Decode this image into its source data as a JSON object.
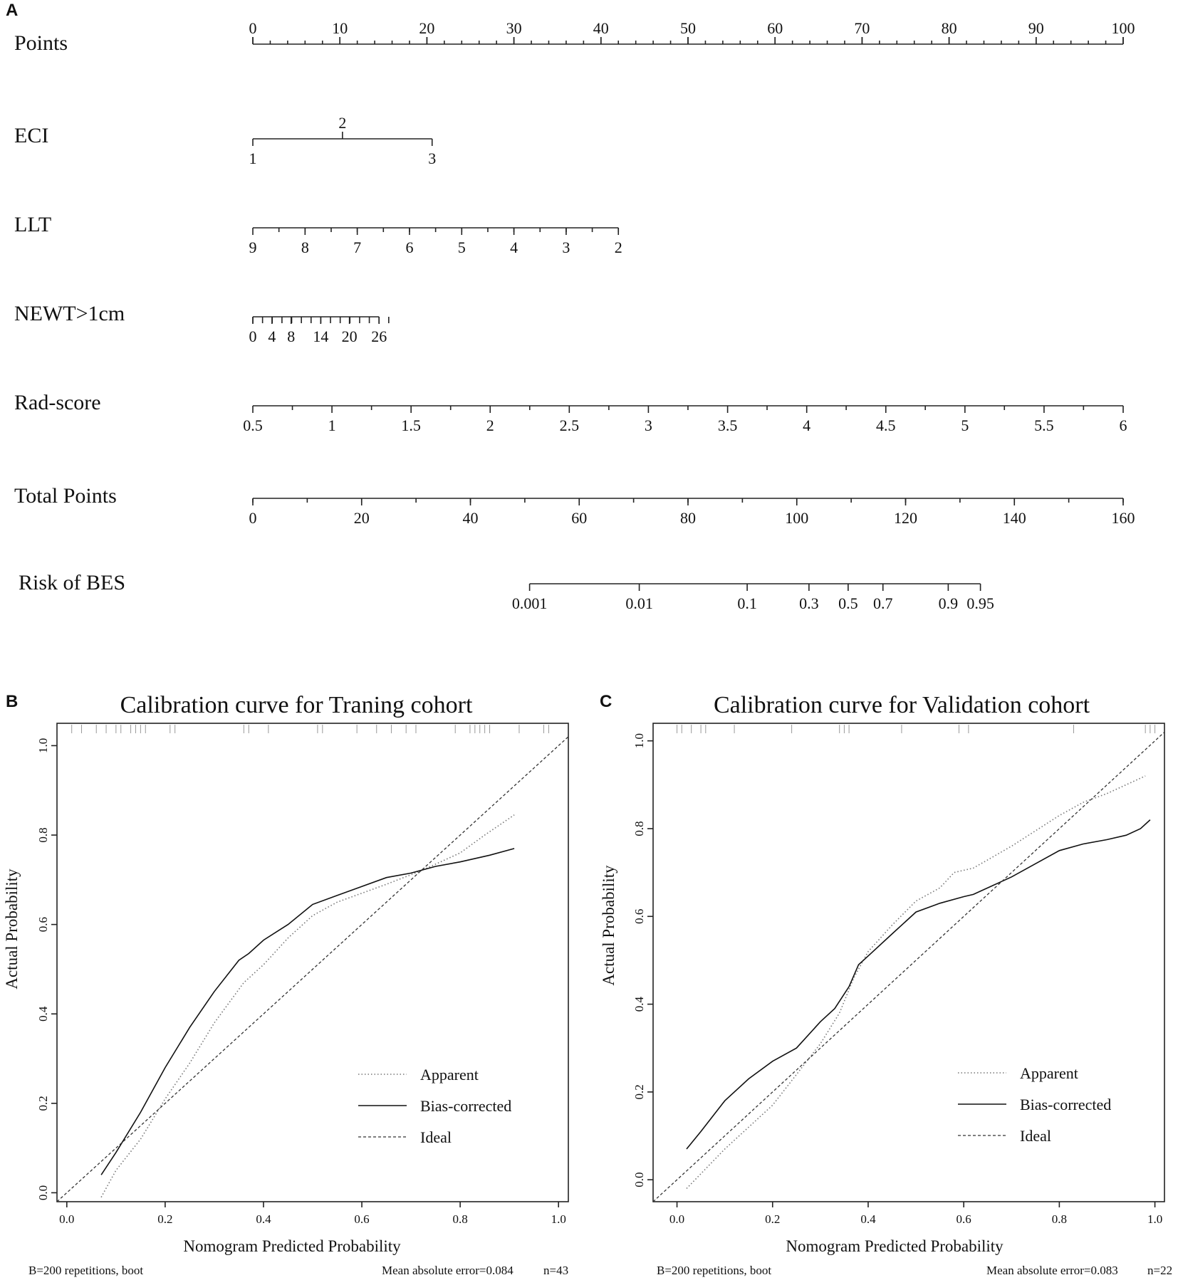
{
  "panel_labels": {
    "a": "A",
    "b": "B",
    "c": "C"
  },
  "nomogram": {
    "rows": [
      {
        "label": "Points",
        "ticks": [
          {
            "v": 0,
            "label": "0"
          },
          {
            "v": 10,
            "label": "10"
          },
          {
            "v": 20,
            "label": "20"
          },
          {
            "v": 30,
            "label": "30"
          },
          {
            "v": 40,
            "label": "40"
          },
          {
            "v": 50,
            "label": "50"
          },
          {
            "v": 60,
            "label": "60"
          },
          {
            "v": 70,
            "label": "70"
          },
          {
            "v": 80,
            "label": "80"
          },
          {
            "v": 90,
            "label": "90"
          },
          {
            "v": 100,
            "label": "100"
          }
        ]
      },
      {
        "label": "ECI",
        "ticks": [
          {
            "v": 0,
            "label": "1"
          },
          {
            "v": 10.3,
            "label": "2"
          },
          {
            "v": 20.6,
            "label": "3"
          }
        ]
      },
      {
        "label": "LLT",
        "ticks": [
          {
            "v": 0,
            "label": "9"
          },
          {
            "v": 6,
            "label": "8"
          },
          {
            "v": 12,
            "label": "7"
          },
          {
            "v": 18,
            "label": "6"
          },
          {
            "v": 24,
            "label": "5"
          },
          {
            "v": 30,
            "label": "4"
          },
          {
            "v": 36,
            "label": "3"
          },
          {
            "v": 42,
            "label": "2"
          }
        ]
      },
      {
        "label": "NEWT>1cm",
        "ticks": [
          {
            "v": 0,
            "label": "0"
          },
          {
            "v": 2.2,
            "label": "4"
          },
          {
            "v": 4.4,
            "label": "8"
          },
          {
            "v": 7.8,
            "label": "14"
          },
          {
            "v": 11.1,
            "label": "20"
          },
          {
            "v": 14.5,
            "label": "26"
          }
        ]
      },
      {
        "label": "Rad-score",
        "ticks": [
          {
            "v": 0,
            "label": "0.5"
          },
          {
            "v": 9.09,
            "label": "1"
          },
          {
            "v": 18.18,
            "label": "1.5"
          },
          {
            "v": 27.27,
            "label": "2"
          },
          {
            "v": 36.36,
            "label": "2.5"
          },
          {
            "v": 45.45,
            "label": "3"
          },
          {
            "v": 54.55,
            "label": "3.5"
          },
          {
            "v": 63.64,
            "label": "4"
          },
          {
            "v": 72.73,
            "label": "4.5"
          },
          {
            "v": 81.82,
            "label": "5"
          },
          {
            "v": 90.91,
            "label": "5.5"
          },
          {
            "v": 100,
            "label": "6"
          }
        ]
      },
      {
        "label": "Total Points",
        "ticks": [
          {
            "v": 0,
            "label": "0"
          },
          {
            "v": 12.5,
            "label": "20"
          },
          {
            "v": 25,
            "label": "40"
          },
          {
            "v": 37.5,
            "label": "60"
          },
          {
            "v": 50,
            "label": "80"
          },
          {
            "v": 62.5,
            "label": "100"
          },
          {
            "v": 75,
            "label": "120"
          },
          {
            "v": 87.5,
            "label": "140"
          },
          {
            "v": 100,
            "label": "160"
          }
        ]
      },
      {
        "label": "Risk of BES",
        "ticks": [
          {
            "v": 31.8,
            "label": "0.001"
          },
          {
            "v": 44.4,
            "label": "0.01"
          },
          {
            "v": 56.8,
            "label": "0.1"
          },
          {
            "v": 63.9,
            "label": "0.3"
          },
          {
            "v": 68.4,
            "label": "0.5"
          },
          {
            "v": 72.4,
            "label": "0.7"
          },
          {
            "v": 79.9,
            "label": "0.9"
          },
          {
            "v": 83.6,
            "label": "0.95"
          }
        ]
      }
    ]
  },
  "chart_data": [
    {
      "type": "line",
      "panel": "B",
      "title": "Calibration curve for Traning cohort",
      "xlabel": "Nomogram Predicted Probability",
      "ylabel": "Actual Probability",
      "xlim": [
        -0.02,
        1.02
      ],
      "ylim": [
        -0.02,
        1.05
      ],
      "xticks": [
        "0.0",
        "0.2",
        "0.4",
        "0.6",
        "0.8",
        "1.0"
      ],
      "yticks": [
        "0.0",
        "0.2",
        "0.4",
        "0.6",
        "0.8",
        "1.0"
      ],
      "series": [
        {
          "name": "Apparent",
          "style": "dotted",
          "points": [
            [
              0.07,
              -0.01
            ],
            [
              0.1,
              0.05
            ],
            [
              0.15,
              0.12
            ],
            [
              0.2,
              0.21
            ],
            [
              0.25,
              0.29
            ],
            [
              0.3,
              0.38
            ],
            [
              0.36,
              0.47
            ],
            [
              0.4,
              0.51
            ],
            [
              0.45,
              0.57
            ],
            [
              0.5,
              0.62
            ],
            [
              0.55,
              0.65
            ],
            [
              0.6,
              0.67
            ],
            [
              0.65,
              0.69
            ],
            [
              0.72,
              0.72
            ],
            [
              0.8,
              0.76
            ],
            [
              0.85,
              0.8
            ],
            [
              0.91,
              0.845
            ]
          ]
        },
        {
          "name": "Bias-corrected",
          "style": "solid",
          "points": [
            [
              0.07,
              0.04
            ],
            [
              0.1,
              0.09
            ],
            [
              0.15,
              0.18
            ],
            [
              0.2,
              0.28
            ],
            [
              0.25,
              0.37
            ],
            [
              0.3,
              0.45
            ],
            [
              0.35,
              0.52
            ],
            [
              0.37,
              0.535
            ],
            [
              0.4,
              0.565
            ],
            [
              0.45,
              0.6
            ],
            [
              0.5,
              0.645
            ],
            [
              0.55,
              0.665
            ],
            [
              0.6,
              0.685
            ],
            [
              0.65,
              0.705
            ],
            [
              0.7,
              0.715
            ],
            [
              0.75,
              0.73
            ],
            [
              0.8,
              0.74
            ],
            [
              0.86,
              0.755
            ],
            [
              0.91,
              0.77
            ]
          ]
        },
        {
          "name": "Ideal",
          "style": "dashed",
          "points": [
            [
              -0.02,
              -0.02
            ],
            [
              1.04,
              1.04
            ]
          ]
        }
      ],
      "rug": [
        0.01,
        0.03,
        0.06,
        0.08,
        0.1,
        0.11,
        0.13,
        0.14,
        0.15,
        0.16,
        0.21,
        0.22,
        0.36,
        0.37,
        0.41,
        0.51,
        0.52,
        0.59,
        0.63,
        0.66,
        0.69,
        0.71,
        0.79,
        0.82,
        0.83,
        0.84,
        0.85,
        0.86,
        0.92,
        0.97,
        0.98
      ],
      "legend": [
        "Apparent",
        "Bias-corrected",
        "Ideal"
      ],
      "footer_left": "B=200 repetitions, boot",
      "footer_mae": "Mean absolute error=0.084",
      "footer_n": "n=43"
    },
    {
      "type": "line",
      "panel": "C",
      "title": "Calibration curve for Validation cohort",
      "xlabel": "Nomogram Predicted Probability",
      "ylabel": "Actual Probability",
      "xlim": [
        -0.05,
        1.02
      ],
      "ylim": [
        -0.05,
        1.04
      ],
      "xticks": [
        "0.0",
        "0.2",
        "0.4",
        "0.6",
        "0.8",
        "1.0"
      ],
      "yticks": [
        "0.0",
        "0.2",
        "0.4",
        "0.6",
        "0.8",
        "1.0"
      ],
      "series": [
        {
          "name": "Apparent",
          "style": "dotted",
          "points": [
            [
              0.02,
              -0.02
            ],
            [
              0.1,
              0.07
            ],
            [
              0.2,
              0.17
            ],
            [
              0.3,
              0.31
            ],
            [
              0.34,
              0.38
            ],
            [
              0.37,
              0.46
            ],
            [
              0.4,
              0.52
            ],
            [
              0.45,
              0.58
            ],
            [
              0.5,
              0.635
            ],
            [
              0.55,
              0.665
            ],
            [
              0.58,
              0.7
            ],
            [
              0.62,
              0.71
            ],
            [
              0.7,
              0.76
            ],
            [
              0.8,
              0.83
            ],
            [
              0.85,
              0.86
            ],
            [
              0.9,
              0.88
            ],
            [
              0.98,
              0.92
            ]
          ]
        },
        {
          "name": "Bias-corrected",
          "style": "solid",
          "points": [
            [
              0.02,
              0.07
            ],
            [
              0.05,
              0.11
            ],
            [
              0.1,
              0.18
            ],
            [
              0.15,
              0.23
            ],
            [
              0.2,
              0.27
            ],
            [
              0.25,
              0.3
            ],
            [
              0.3,
              0.36
            ],
            [
              0.33,
              0.39
            ],
            [
              0.36,
              0.44
            ],
            [
              0.38,
              0.49
            ],
            [
              0.4,
              0.51
            ],
            [
              0.45,
              0.56
            ],
            [
              0.5,
              0.61
            ],
            [
              0.55,
              0.63
            ],
            [
              0.6,
              0.645
            ],
            [
              0.62,
              0.65
            ],
            [
              0.66,
              0.67
            ],
            [
              0.7,
              0.69
            ],
            [
              0.75,
              0.72
            ],
            [
              0.8,
              0.75
            ],
            [
              0.85,
              0.765
            ],
            [
              0.9,
              0.775
            ],
            [
              0.94,
              0.785
            ],
            [
              0.97,
              0.8
            ],
            [
              0.99,
              0.82
            ]
          ]
        },
        {
          "name": "Ideal",
          "style": "dashed",
          "points": [
            [
              -0.05,
              -0.05
            ],
            [
              1.03,
              1.03
            ]
          ]
        }
      ],
      "rug": [
        0.0,
        0.01,
        0.03,
        0.05,
        0.06,
        0.12,
        0.24,
        0.34,
        0.35,
        0.36,
        0.47,
        0.59,
        0.61,
        0.83,
        0.98,
        0.99,
        1.0
      ],
      "legend": [
        "Apparent",
        "Bias-corrected",
        "Ideal"
      ],
      "footer_left": "B=200 repetitions, boot",
      "footer_mae": "Mean absolute error=0.083",
      "footer_n": "n=22"
    }
  ]
}
